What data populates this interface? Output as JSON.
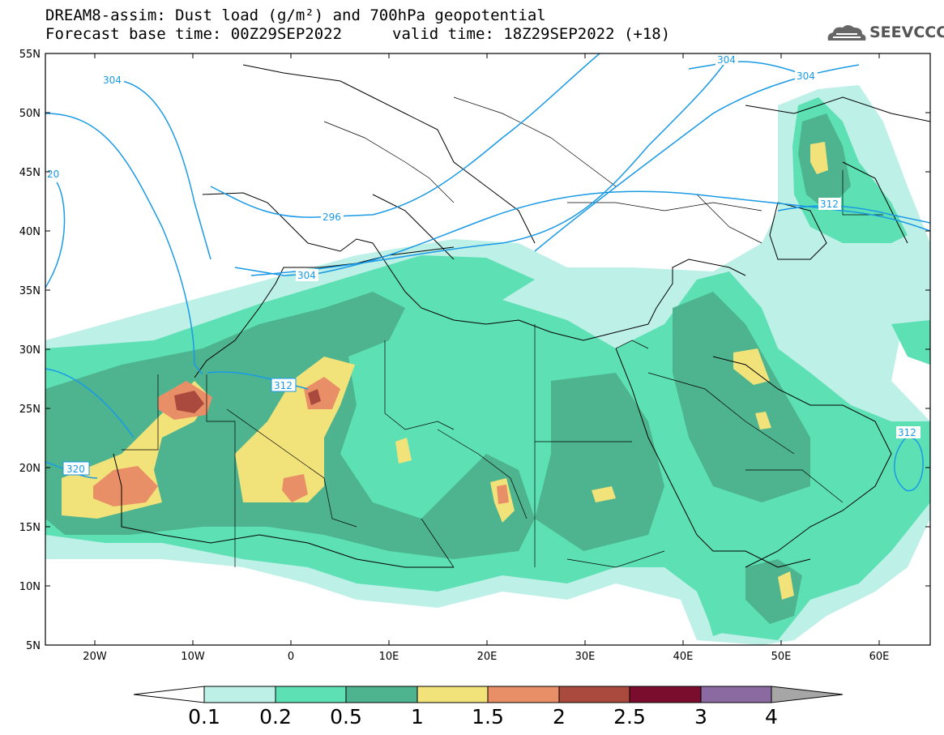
{
  "header": {
    "title_line1": "DREAM8-assim: Dust load (g/m²) and 700hPa geopotential",
    "title_line2_left": "Forecast base time: 00Z29SEP2022",
    "title_line2_right": "valid time: 18Z29SEP2022 (+18)",
    "logo_text": "SEEVCCC"
  },
  "map": {
    "lat_ticks": [
      "55N",
      "50N",
      "45N",
      "40N",
      "35N",
      "30N",
      "25N",
      "20N",
      "15N",
      "10N",
      "5N"
    ],
    "lon_ticks": [
      "20W",
      "10W",
      "0",
      "10E",
      "20E",
      "30E",
      "40E",
      "50E",
      "60E"
    ],
    "contour_labels": [
      "304",
      "304",
      "304",
      "304",
      "296",
      "312",
      "312",
      "312",
      "320",
      "20"
    ],
    "colors": {
      "c01": "#bdf0e6",
      "c02": "#5de0b4",
      "c05": "#4db48f",
      "c1": "#f2e27a",
      "c15": "#e98f68",
      "c2": "#aa4a3f",
      "c25": "#7a0c2e",
      "c3": "#8a6aa0",
      "c4": "#a6a6a6",
      "contour": "#1a9ae6"
    }
  },
  "colorbar": {
    "labels": [
      "0.1",
      "0.2",
      "0.5",
      "1",
      "1.5",
      "2",
      "2.5",
      "3",
      "4"
    ]
  }
}
